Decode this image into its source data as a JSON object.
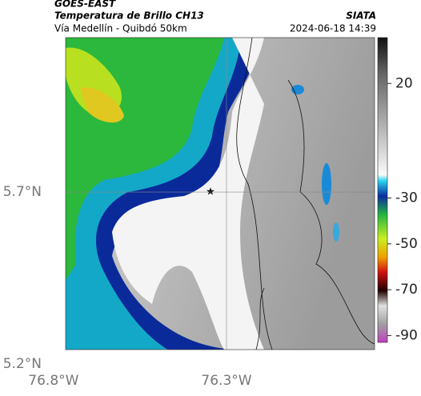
{
  "header": {
    "source": "GOES-EAST",
    "product": "Temperatura de Brillo CH13",
    "region": "Vía Medellín - Quibdó 50km",
    "agency": "SIATA",
    "timestamp": "2024-06-18 14:39"
  },
  "map": {
    "lat_range": [
      5.242,
      6.149
    ],
    "lon_range": [
      -76.765,
      -75.872
    ],
    "lat_ticks": [
      {
        "value": 5.7,
        "label": "5.7°N"
      },
      {
        "value": 5.2,
        "label": "5.2°N"
      }
    ],
    "lon_ticks": [
      {
        "value": -76.8,
        "label": "76.8°W"
      },
      {
        "value": -76.3,
        "label": "76.3°W"
      }
    ]
  },
  "colorbar": {
    "range": [
      -93,
      40
    ],
    "ticks": [
      20,
      -30,
      -50,
      -70,
      -90
    ]
  }
}
